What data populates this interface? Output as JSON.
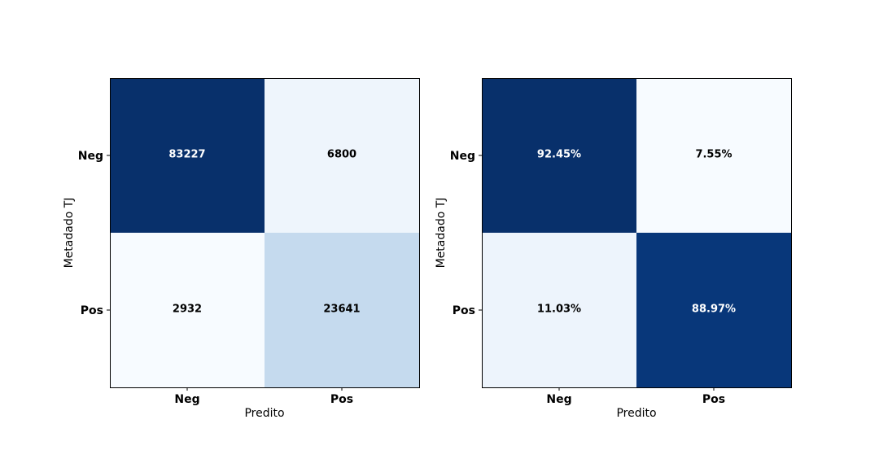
{
  "chart_data": [
    {
      "type": "heatmap",
      "title": "",
      "xlabel": "Predito",
      "ylabel": "Metadado TJ",
      "x_categories": [
        "Neg",
        "Pos"
      ],
      "y_categories": [
        "Neg",
        "Pos"
      ],
      "colormap": "Blues",
      "values": [
        [
          83227,
          6800
        ],
        [
          2932,
          23641
        ]
      ],
      "labels": [
        [
          "83227",
          "6800"
        ],
        [
          "2932",
          "23641"
        ]
      ],
      "cell_colors": [
        [
          "#08306b",
          "#eef5fc"
        ],
        [
          "#f7fbff",
          "#c5daee"
        ]
      ],
      "text_colors": [
        [
          "#ffffff",
          "#000000"
        ],
        [
          "#000000",
          "#000000"
        ]
      ]
    },
    {
      "type": "heatmap",
      "title": "",
      "xlabel": "Predito",
      "ylabel": "Metadado TJ",
      "x_categories": [
        "Neg",
        "Pos"
      ],
      "y_categories": [
        "Neg",
        "Pos"
      ],
      "colormap": "Blues",
      "values": [
        [
          92.45,
          7.55
        ],
        [
          11.03,
          88.97
        ]
      ],
      "labels": [
        [
          "92.45%",
          "7.55%"
        ],
        [
          "11.03%",
          "88.97%"
        ]
      ],
      "cell_colors": [
        [
          "#08306b",
          "#f7fbff"
        ],
        [
          "#edf4fc",
          "#08377a"
        ]
      ],
      "text_colors": [
        [
          "#ffffff",
          "#000000"
        ],
        [
          "#000000",
          "#ffffff"
        ]
      ]
    }
  ]
}
